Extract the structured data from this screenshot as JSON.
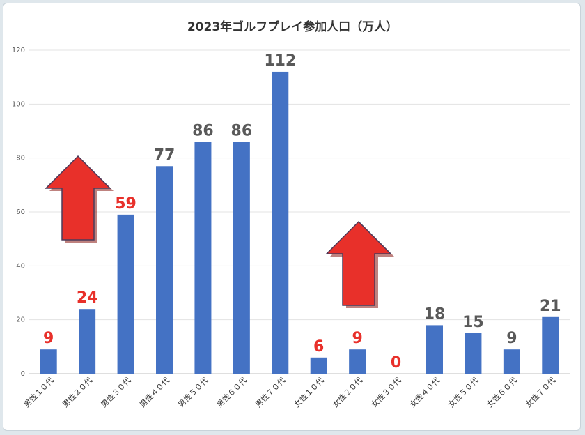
{
  "chart_data": {
    "type": "bar",
    "title": "2023年ゴルフプレイ参加人口（万人）",
    "categories": [
      "男性１０代",
      "男性２０代",
      "男性３０代",
      "男性４０代",
      "男性５０代",
      "男性６０代",
      "男性７０代",
      "女性１０代",
      "女性２０代",
      "女性３０代",
      "女性４０代",
      "女性５０代",
      "女性６０代",
      "女性７０代"
    ],
    "values": [
      9,
      24,
      59,
      77,
      86,
      86,
      112,
      6,
      9,
      0,
      18,
      15,
      9,
      21
    ],
    "value_labels": [
      "9",
      "24",
      "59",
      "77",
      "86",
      "86",
      "112",
      "6",
      "9",
      "0",
      "18",
      "15",
      "9",
      "21"
    ],
    "highlight": [
      true,
      true,
      true,
      false,
      false,
      false,
      false,
      true,
      true,
      true,
      false,
      false,
      false,
      false
    ],
    "y_ticks": [
      "0",
      "20",
      "40",
      "60",
      "80",
      "100",
      "120"
    ],
    "ylim": [
      0,
      120
    ],
    "xlabel": "",
    "ylabel": "",
    "grid": true,
    "legend": "none",
    "bar_color": "#4472c4",
    "label_color": "#595959",
    "highlight_color": "#e8302a",
    "annotations": [
      {
        "type": "up-arrow",
        "color": "#e8302a"
      },
      {
        "type": "up-arrow",
        "color": "#e8302a"
      }
    ]
  }
}
